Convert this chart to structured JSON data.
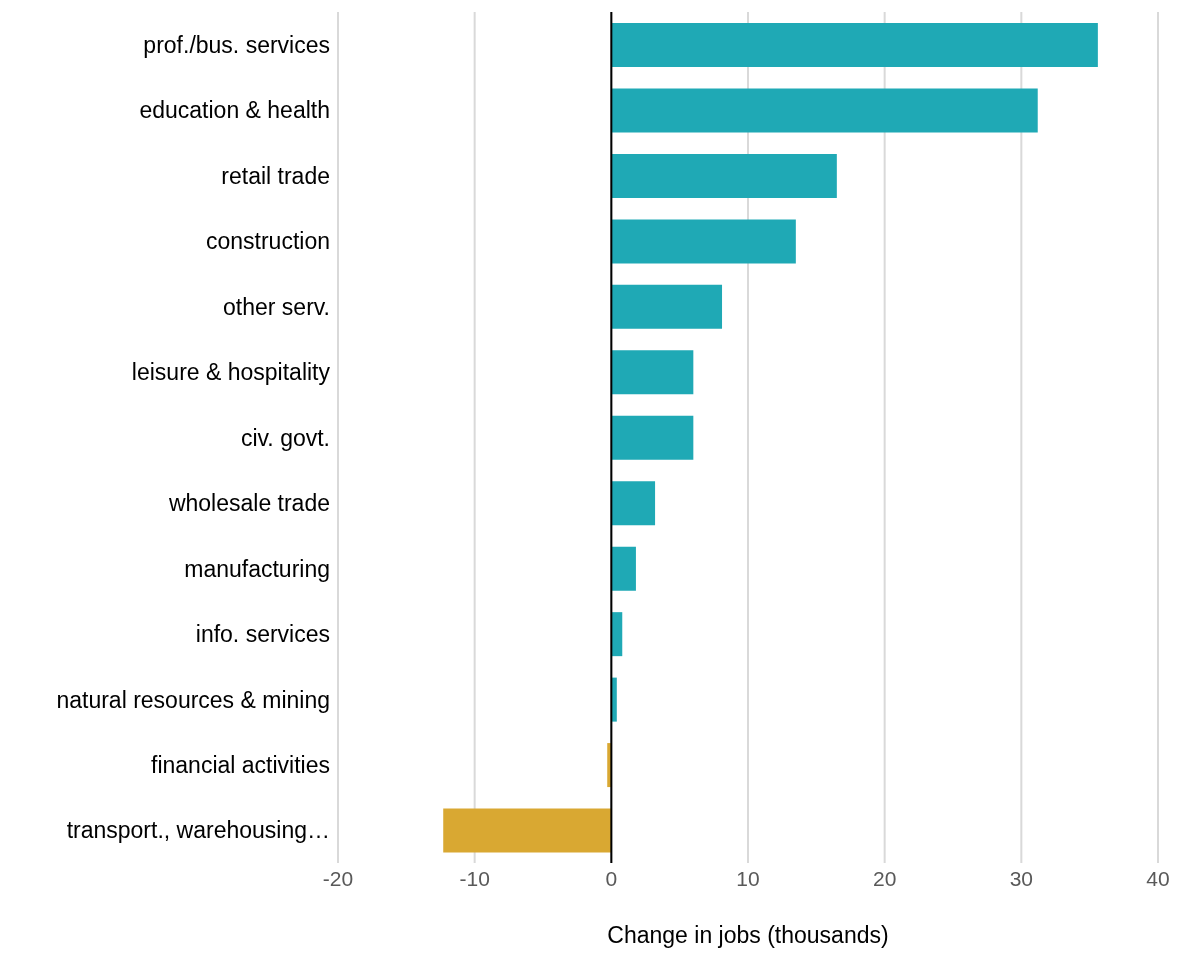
{
  "chart_data": {
    "type": "bar",
    "orientation": "horizontal",
    "xlabel": "Change in jobs (thousands)",
    "categories": [
      "prof./bus. services",
      "education & health",
      "retail trade",
      "construction",
      "other serv.",
      "leisure & hospitality",
      "civ. govt.",
      "wholesale trade",
      "manufacturing",
      "info. services",
      "natural resources & mining",
      "financial activities",
      "transport., warehousing…"
    ],
    "values": [
      35.6,
      31.2,
      16.5,
      13.5,
      8.1,
      6.0,
      6.0,
      3.2,
      1.8,
      0.8,
      0.4,
      -0.3,
      -12.3
    ],
    "colors": [
      "#1fa9b5",
      "#1fa9b5",
      "#1fa9b5",
      "#1fa9b5",
      "#1fa9b5",
      "#1fa9b5",
      "#1fa9b5",
      "#1fa9b5",
      "#1fa9b5",
      "#1fa9b5",
      "#1fa9b5",
      "#d9a832",
      "#d9a832"
    ],
    "xlim": [
      -20,
      40
    ],
    "xticks": [
      -20,
      -10,
      0,
      10,
      20,
      30,
      40
    ],
    "grid": "x",
    "legend": false
  }
}
